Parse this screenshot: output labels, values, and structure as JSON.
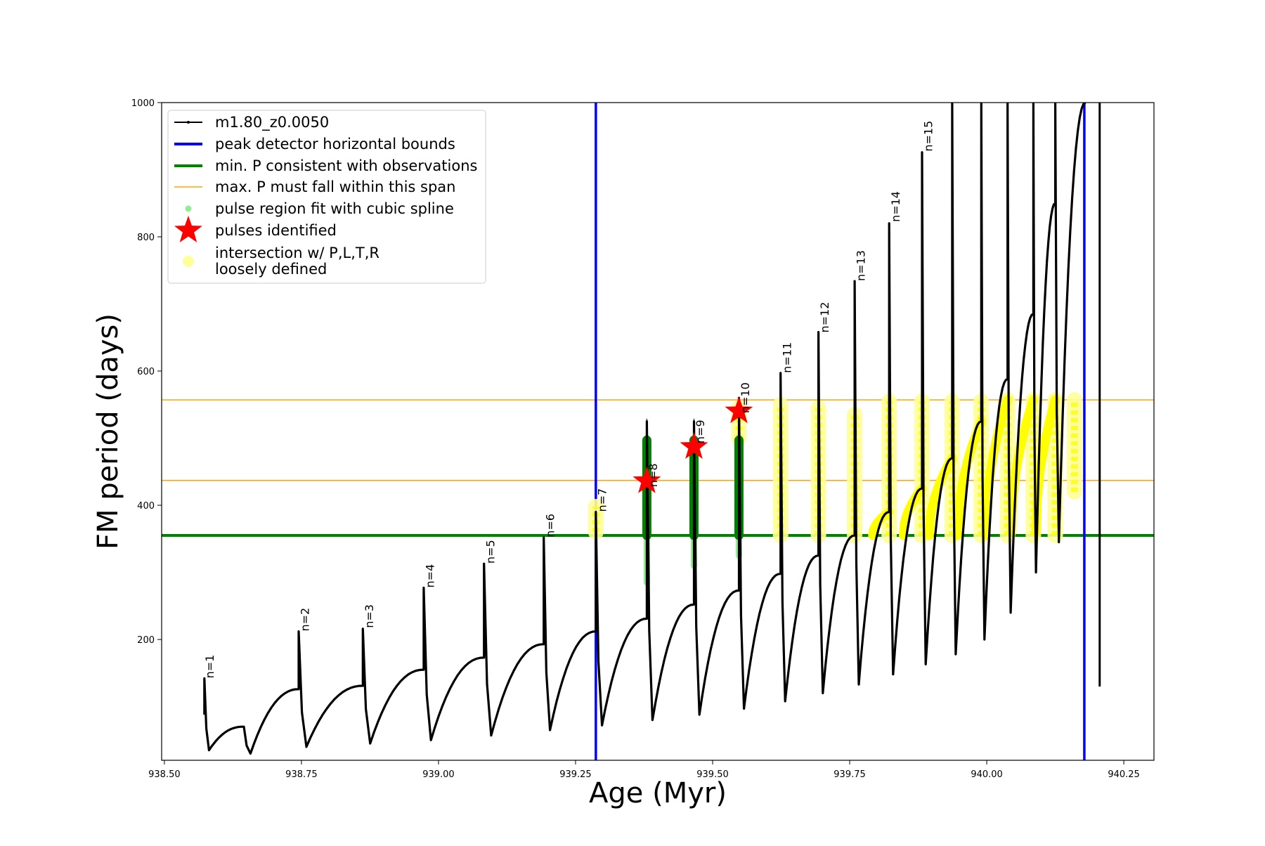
{
  "chart_data": {
    "type": "line",
    "title": "",
    "xlabel": "Age (Myr)",
    "ylabel": "FM period (days)",
    "xlim": [
      938.495,
      940.305
    ],
    "ylim": [
      20,
      1000
    ],
    "xticks": [
      "938.50",
      "938.75",
      "939.00",
      "939.25",
      "939.50",
      "939.75",
      "940.00",
      "940.25"
    ],
    "xtick_values": [
      938.5,
      938.75,
      939.0,
      939.25,
      939.5,
      939.75,
      940.0,
      940.25
    ],
    "yticks": [
      "200",
      "400",
      "600",
      "800",
      "1000"
    ],
    "ytick_values": [
      200,
      400,
      600,
      800,
      1000
    ],
    "grid": false,
    "legend_position": "top-left",
    "legend": [
      {
        "label": "m1.80_z0.0050",
        "style": "line-marker",
        "color": "#000000"
      },
      {
        "label": "peak detector horizontal bounds",
        "style": "line",
        "color": "#0000ff"
      },
      {
        "label": "min. P consistent with observations",
        "style": "line",
        "color": "#008000"
      },
      {
        "label": "max. P must fall within this span",
        "style": "thin-line",
        "color": "#ffa500"
      },
      {
        "label": "pulse region fit with cubic spline",
        "style": "dot",
        "color": "#90ee90"
      },
      {
        "label": "pulses identified",
        "style": "star",
        "color": "#ff0000"
      },
      {
        "label": "intersection w/ P,L,T,R\nloosely defined",
        "style": "big-dot",
        "color": "#ffff99"
      }
    ],
    "vertical_bounds": [
      939.287,
      940.178
    ],
    "min_period": 355,
    "max_period_span": [
      437,
      557
    ],
    "model_series": {
      "name": "m1.80_z0.0050",
      "color": "#000000",
      "start": {
        "x": 938.573,
        "y": 88
      },
      "segments": [
        {
          "x_start": 938.573,
          "x_end": 938.643,
          "spike": 142,
          "trough": 35,
          "end_y": 70
        },
        {
          "x_start": 938.645,
          "x_end": 938.745,
          "spike": 70,
          "trough": 30,
          "end_y": 126
        },
        {
          "x_start": 938.745,
          "x_end": 938.862,
          "spike": 212,
          "trough": 40,
          "end_y": 131
        },
        {
          "x_start": 938.862,
          "x_end": 938.973,
          "spike": 216,
          "trough": 45,
          "end_y": 155
        },
        {
          "x_start": 938.973,
          "x_end": 939.083,
          "spike": 277,
          "trough": 50,
          "end_y": 173
        },
        {
          "x_start": 939.083,
          "x_end": 939.192,
          "spike": 313,
          "trough": 57,
          "end_y": 193
        },
        {
          "x_start": 939.192,
          "x_end": 939.287,
          "spike": 352,
          "trough": 65,
          "end_y": 212
        },
        {
          "x_start": 939.287,
          "x_end": 939.38,
          "spike": 390,
          "trough": 72,
          "end_y": 231
        },
        {
          "x_start": 939.38,
          "x_end": 939.466,
          "spike": 525,
          "trough": 80,
          "end_y": 252
        },
        {
          "x_start": 939.466,
          "x_end": 939.548,
          "spike": 525,
          "trough": 88,
          "end_y": 273
        },
        {
          "x_start": 939.548,
          "x_end": 939.624,
          "spike": 560,
          "trough": 97,
          "end_y": 298
        },
        {
          "x_start": 939.624,
          "x_end": 939.693,
          "spike": 597,
          "trough": 108,
          "end_y": 325
        },
        {
          "x_start": 939.693,
          "x_end": 939.759,
          "spike": 658,
          "trough": 120,
          "end_y": 355
        },
        {
          "x_start": 939.759,
          "x_end": 939.822,
          "spike": 734,
          "trough": 133,
          "end_y": 390
        },
        {
          "x_start": 939.822,
          "x_end": 939.882,
          "spike": 820,
          "trough": 148,
          "end_y": 425
        },
        {
          "x_start": 939.882,
          "x_end": 939.937,
          "spike": 926,
          "trough": 163,
          "end_y": 470
        },
        {
          "x_start": 939.937,
          "x_end": 939.99,
          "spike": 1000,
          "trough": 178,
          "end_y": 525
        },
        {
          "x_start": 939.99,
          "x_end": 940.038,
          "spike": 1000,
          "trough": 200,
          "end_y": 588
        },
        {
          "x_start": 940.038,
          "x_end": 940.085,
          "spike": 1000,
          "trough": 240,
          "end_y": 685
        },
        {
          "x_start": 940.085,
          "x_end": 940.125,
          "spike": 1000,
          "trough": 300,
          "end_y": 850
        },
        {
          "x_start": 940.125,
          "x_end": 940.18,
          "spike": 1000,
          "trough": 345,
          "end_y": 1000
        }
      ],
      "tail": [
        940.206,
        130,
        1000
      ]
    },
    "pulse_labels": [
      {
        "text": "n=1",
        "x": 938.573,
        "y": 140
      },
      {
        "text": "n=2",
        "x": 938.747,
        "y": 210
      },
      {
        "text": "n=3",
        "x": 938.864,
        "y": 215
      },
      {
        "text": "n=4",
        "x": 938.975,
        "y": 275
      },
      {
        "text": "n=5",
        "x": 939.085,
        "y": 311
      },
      {
        "text": "n=6",
        "x": 939.194,
        "y": 350
      },
      {
        "text": "n=7",
        "x": 939.289,
        "y": 388
      },
      {
        "text": "n=8",
        "x": 939.382,
        "y": 425
      },
      {
        "text": "n=9",
        "x": 939.468,
        "y": 490
      },
      {
        "text": "n=10",
        "x": 939.55,
        "y": 535
      },
      {
        "text": "n=11",
        "x": 939.626,
        "y": 595
      },
      {
        "text": "n=12",
        "x": 939.695,
        "y": 655
      },
      {
        "text": "n=13",
        "x": 939.761,
        "y": 732
      },
      {
        "text": "n=14",
        "x": 939.824,
        "y": 820
      },
      {
        "text": "n=15",
        "x": 939.884,
        "y": 925
      }
    ],
    "pulses_identified": [
      {
        "x": 939.38,
        "y": 436
      },
      {
        "x": 939.466,
        "y": 487
      },
      {
        "x": 939.548,
        "y": 540
      }
    ],
    "spline_fit_regions": [
      {
        "x": 939.38,
        "y_low": 285,
        "y_high": 500
      },
      {
        "x": 939.466,
        "y_low": 310,
        "y_high": 500
      },
      {
        "x": 939.548,
        "y_low": 325,
        "y_high": 500
      }
    ],
    "dense_fit_regions": [
      {
        "x": 939.38,
        "y_low": 355,
        "y_high": 497
      },
      {
        "x": 939.466,
        "y_low": 355,
        "y_high": 497
      },
      {
        "x": 939.548,
        "y_low": 355,
        "y_high": 497
      }
    ],
    "loose_intersections_vertical": [
      {
        "x": 939.287,
        "y_low": 360,
        "y_high": 398
      },
      {
        "x": 939.548,
        "y_low": 500,
        "y_high": 545
      },
      {
        "x": 939.624,
        "y_low": 355,
        "y_high": 550
      },
      {
        "x": 939.693,
        "y_low": 355,
        "y_high": 545
      },
      {
        "x": 939.759,
        "y_low": 355,
        "y_high": 535
      },
      {
        "x": 939.822,
        "y_low": 355,
        "y_high": 555
      },
      {
        "x": 939.882,
        "y_low": 355,
        "y_high": 555
      },
      {
        "x": 939.937,
        "y_low": 355,
        "y_high": 555
      },
      {
        "x": 939.99,
        "y_low": 355,
        "y_high": 555
      },
      {
        "x": 940.038,
        "y_low": 355,
        "y_high": 557
      },
      {
        "x": 940.085,
        "y_low": 355,
        "y_high": 557
      },
      {
        "x": 940.125,
        "y_low": 355,
        "y_high": 557
      },
      {
        "x": 940.16,
        "y_low": 420,
        "y_high": 557
      }
    ],
    "loose_intersections_arcs": [
      {
        "x_start": 939.792,
        "x_end": 939.822,
        "y_start": 355,
        "y_end": 390
      },
      {
        "x_start": 939.848,
        "x_end": 939.882,
        "y_start": 355,
        "y_end": 425
      },
      {
        "x_start": 939.895,
        "x_end": 939.937,
        "y_start": 355,
        "y_end": 470
      },
      {
        "x_start": 939.947,
        "x_end": 939.99,
        "y_start": 355,
        "y_end": 525
      },
      {
        "x_start": 939.998,
        "x_end": 940.038,
        "y_start": 355,
        "y_end": 557
      },
      {
        "x_start": 940.045,
        "x_end": 940.085,
        "y_start": 360,
        "y_end": 557
      },
      {
        "x_start": 940.09,
        "x_end": 940.125,
        "y_start": 360,
        "y_end": 557
      }
    ]
  }
}
